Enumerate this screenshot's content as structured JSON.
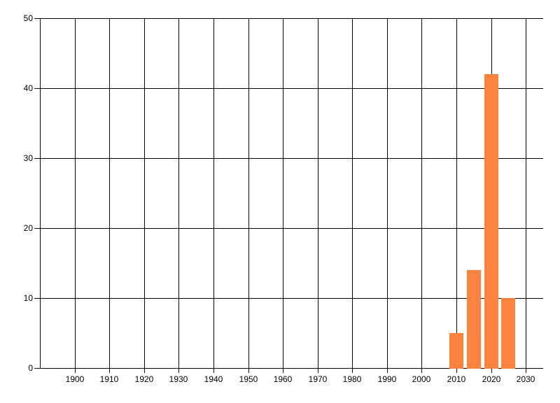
{
  "chart_data": {
    "type": "bar",
    "title": "",
    "xlabel": "",
    "ylabel": "",
    "x": [
      2010,
      2015,
      2020,
      2025
    ],
    "values": [
      5,
      14,
      42,
      10
    ],
    "bar_width_years": 4,
    "xlim": [
      1890,
      2035
    ],
    "ylim": [
      0,
      50
    ],
    "x_ticks": [
      1900,
      1910,
      1920,
      1930,
      1940,
      1950,
      1960,
      1970,
      1980,
      1990,
      2000,
      2010,
      2020,
      2030
    ],
    "y_ticks": [
      0,
      10,
      20,
      30,
      40,
      50
    ],
    "grid": true,
    "legend": false,
    "colors": {
      "bar": "#fd833e",
      "grid": "#000000",
      "axis": "#000000",
      "label": "#000000",
      "background": "#ffffff"
    }
  }
}
